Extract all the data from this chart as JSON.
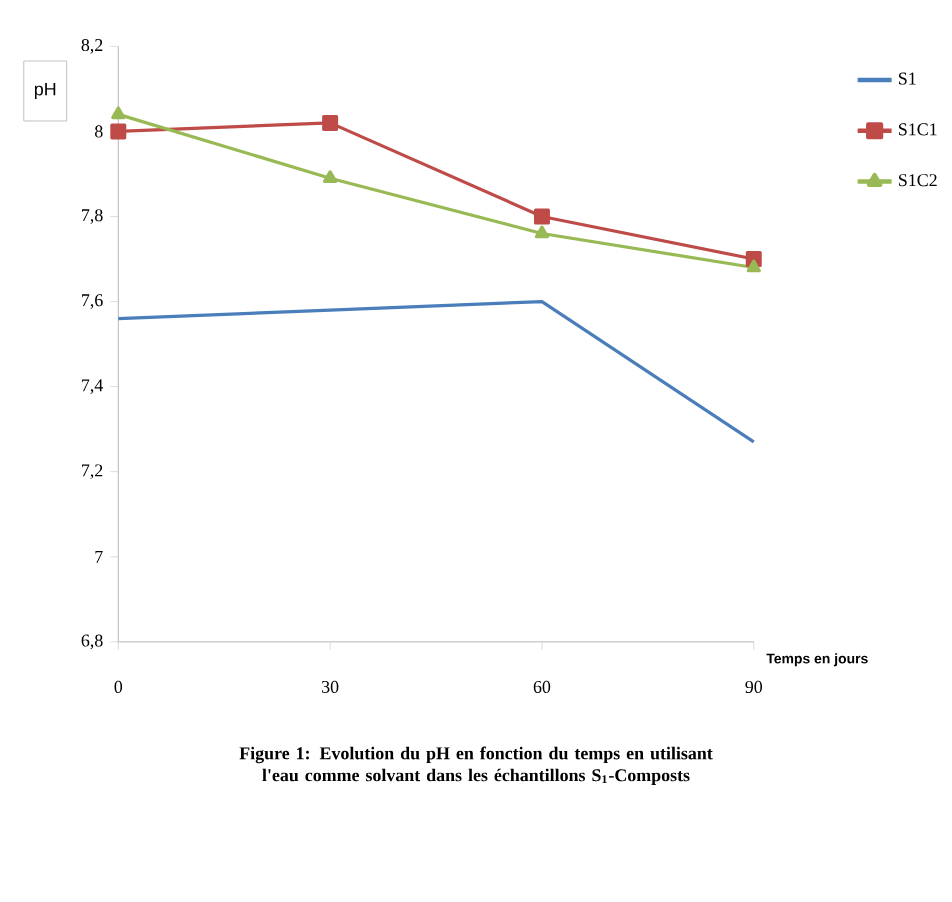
{
  "chart_data": {
    "type": "line",
    "xlabel": "Temps en jours",
    "ylabel": "pH",
    "annotations": [
      "Figure 1: Evolution du pH en fonction du temps en utilisant l'eau comme solvant dans les échantillons S$_{1}$-Composts"
    ],
    "x": [
      0,
      30,
      60,
      90
    ],
    "series": [
      {
        "name": "S1",
        "color": "#4a7ebb",
        "marker": "none",
        "values": [
          7.56,
          7.58,
          7.6,
          7.27
        ]
      },
      {
        "name": "S1C1",
        "color": "#be4b48",
        "marker": "square",
        "values": [
          8.0,
          8.02,
          7.8,
          7.7
        ]
      },
      {
        "name": "S1C2",
        "color": "#98b954",
        "marker": "triangle",
        "values": [
          8.04,
          7.89,
          7.76,
          7.68
        ]
      }
    ],
    "xlim": [
      0,
      90
    ],
    "xticks": [
      0,
      30,
      60,
      90
    ],
    "ylim": [
      6.8,
      8.2
    ],
    "yticks": [
      {
        "value": 6.8,
        "label": "6,8"
      },
      7,
      {
        "value": 7.2,
        "label": "7,2"
      },
      {
        "value": 7.4,
        "label": "7,4"
      },
      {
        "value": 7.6,
        "label": "7,6"
      },
      {
        "value": 7.8,
        "label": "7,8"
      },
      8,
      {
        "value": 8.2,
        "label": "8,2"
      }
    ],
    "grid": false,
    "legend": "right"
  }
}
